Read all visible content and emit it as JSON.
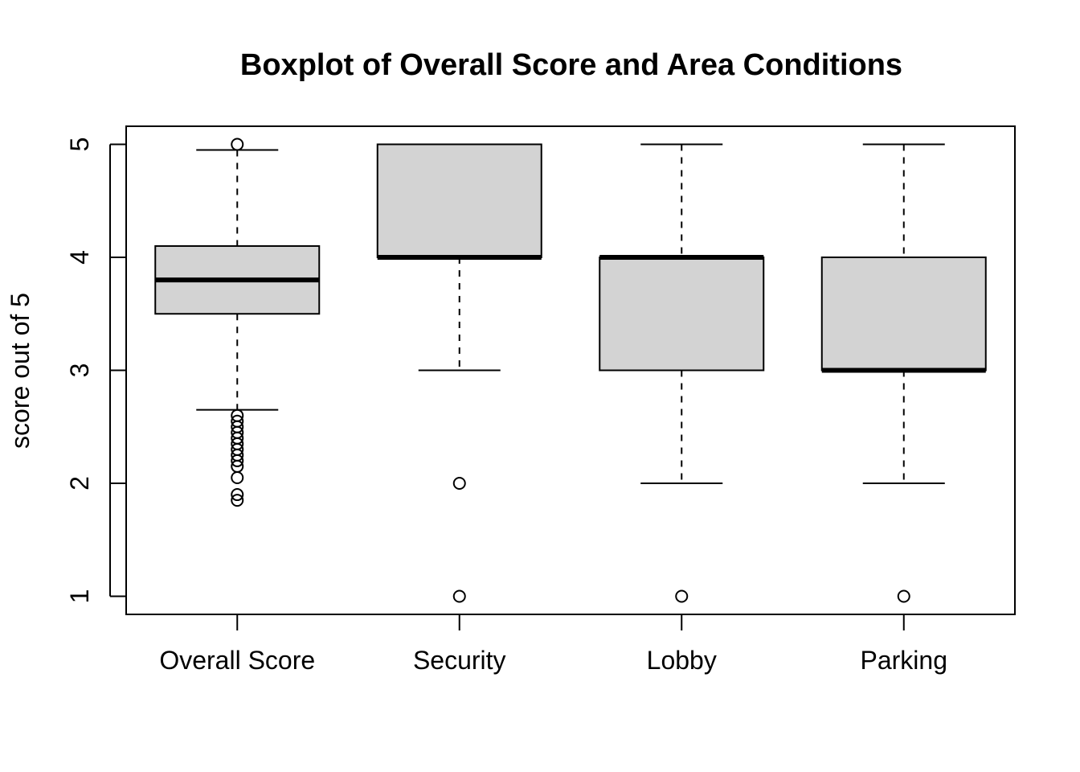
{
  "chart_data": {
    "type": "boxplot",
    "title": "Boxplot of Overall Score and Area Conditions",
    "xlabel": "",
    "ylabel": "score out of 5",
    "ylim": [
      0.84,
      5.16
    ],
    "yticks": [
      1,
      2,
      3,
      4,
      5
    ],
    "box_fill": "#d3d3d3",
    "categories": [
      "Overall Score",
      "Security",
      "Lobby",
      "Parking"
    ],
    "boxes": [
      {
        "name": "Overall Score",
        "whisker_low": 2.65,
        "q1": 3.5,
        "median": 3.8,
        "q3": 4.1,
        "whisker_high": 4.95,
        "outliers": [
          5.0,
          2.6,
          2.55,
          2.5,
          2.45,
          2.4,
          2.35,
          2.3,
          2.25,
          2.2,
          2.15,
          2.05,
          1.9,
          1.85
        ]
      },
      {
        "name": "Security",
        "whisker_low": 3.0,
        "q1": 4.0,
        "median": 4.0,
        "q3": 5.0,
        "whisker_high": 5.0,
        "outliers": [
          2.0,
          1.0
        ]
      },
      {
        "name": "Lobby",
        "whisker_low": 2.0,
        "q1": 3.0,
        "median": 4.0,
        "q3": 4.0,
        "whisker_high": 5.0,
        "outliers": [
          1.0
        ]
      },
      {
        "name": "Parking",
        "whisker_low": 2.0,
        "q1": 3.0,
        "median": 3.0,
        "q3": 4.0,
        "whisker_high": 5.0,
        "outliers": [
          1.0
        ]
      }
    ]
  }
}
